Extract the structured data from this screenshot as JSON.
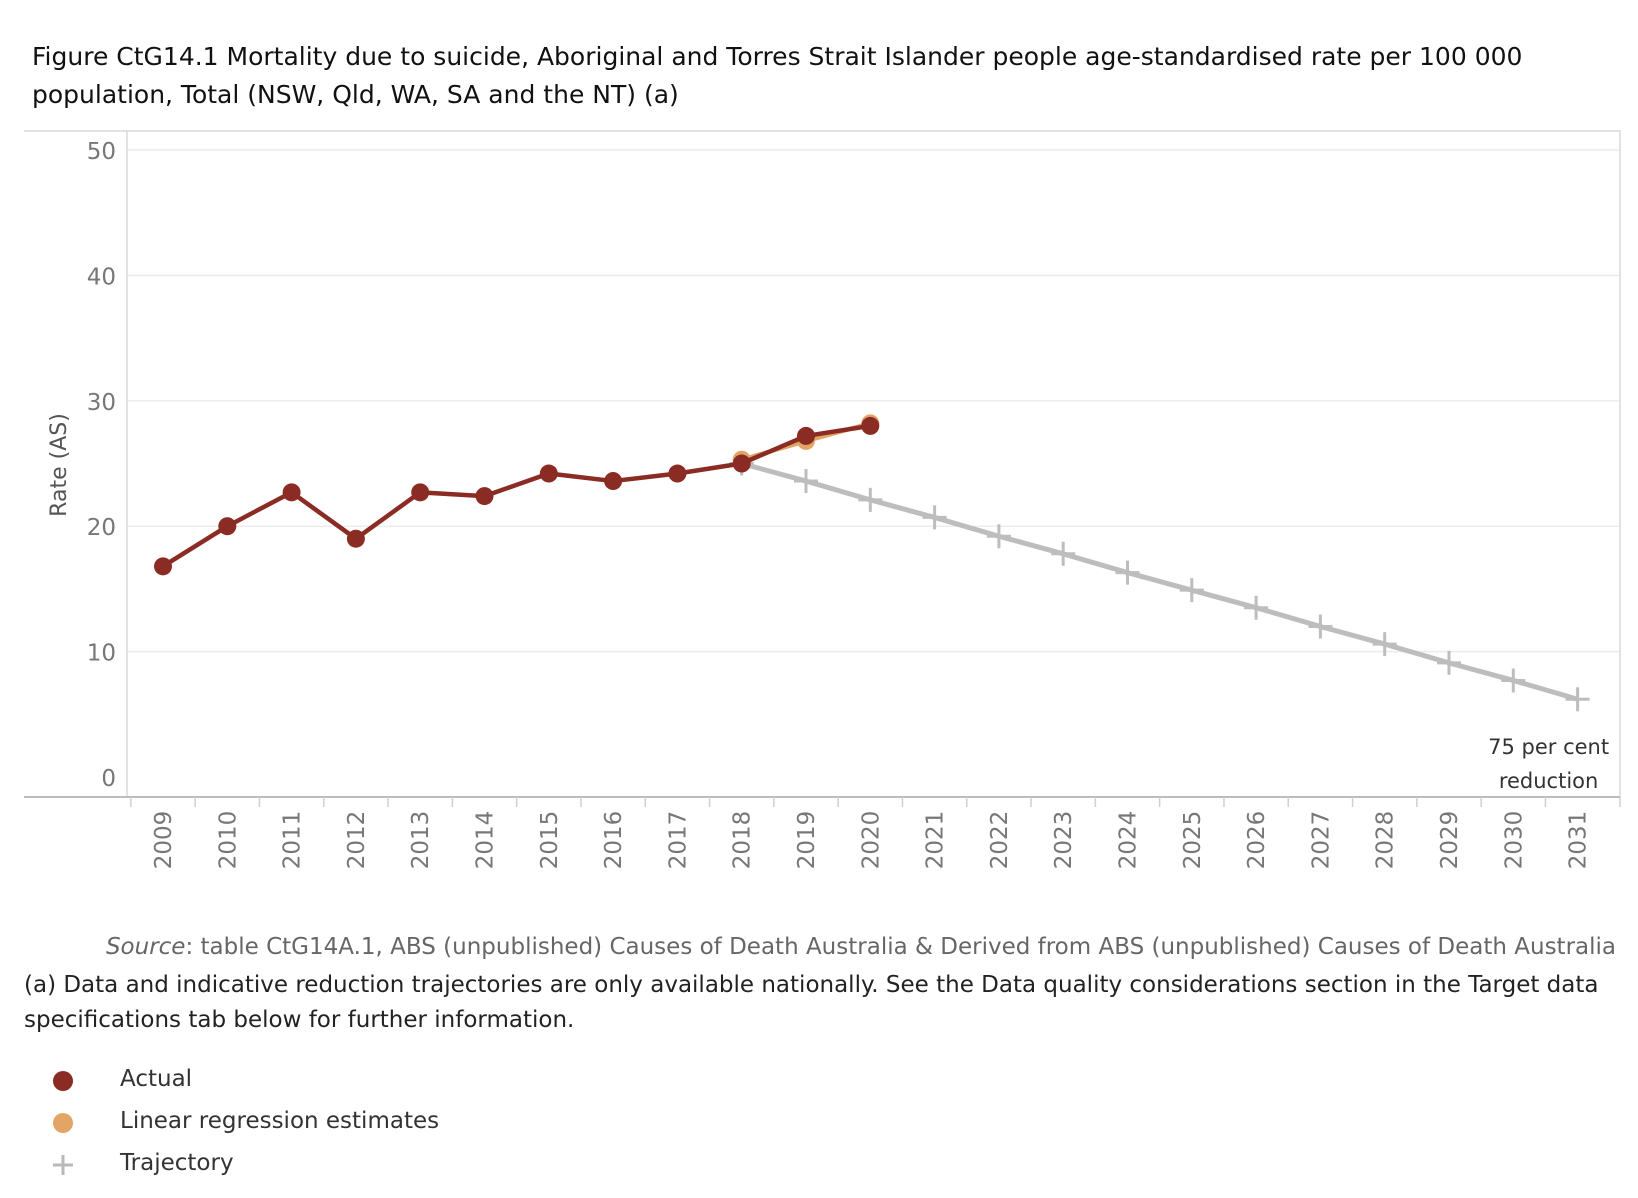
{
  "title": "Figure CtG14.1 Mortality due to suicide, Aboriginal and Torres Strait Islander people age-standardised rate per 100 000 population, Total (NSW, Qld, WA, SA and the NT) (a)",
  "source_label": "Source",
  "source_text": ": table CtG14A.1, ABS (unpublished) Causes of Death Australia & Derived from ABS (unpublished) Causes of Death Australia",
  "footnote": "(a) Data and indicative reduction trajectories are only available nationally. See the Data quality considerations section in the Target data specifications tab below for further information.",
  "legend": [
    {
      "label": "Actual",
      "marker": "circle",
      "color": "#8b2c24"
    },
    {
      "label": "Linear regression estimates",
      "marker": "circle",
      "color": "#e2a566"
    },
    {
      "label": "Trajectory",
      "marker": "plus",
      "color": "#b8b8b8"
    }
  ],
  "chart_data": {
    "type": "line",
    "ylabel": "Rate (AS)",
    "xlabel": "",
    "ylim": [
      0,
      50
    ],
    "yticks": [
      0,
      10,
      20,
      30,
      40,
      50
    ],
    "categories": [
      "2009",
      "2010",
      "2011",
      "2012",
      "2013",
      "2014",
      "2015",
      "2016",
      "2017",
      "2018",
      "2019",
      "2020",
      "2021",
      "2022",
      "2023",
      "2024",
      "2025",
      "2026",
      "2027",
      "2028",
      "2029",
      "2030",
      "2031"
    ],
    "grid": true,
    "annotation": {
      "text_line1": "75 per cent",
      "text_line2": "reduction",
      "x": "2031"
    },
    "series": [
      {
        "name": "Trajectory",
        "color": "#bdbdbd",
        "marker": "plus",
        "x": [
          "2018",
          "2019",
          "2020",
          "2021",
          "2022",
          "2023",
          "2024",
          "2025",
          "2026",
          "2027",
          "2028",
          "2029",
          "2030",
          "2031"
        ],
        "values": [
          25.0,
          23.6,
          22.1,
          20.7,
          19.2,
          17.8,
          16.3,
          14.9,
          13.5,
          12.0,
          10.6,
          9.1,
          7.7,
          6.2
        ]
      },
      {
        "name": "Linear regression estimates",
        "color": "#e2a566",
        "marker": "circle",
        "x": [
          "2018",
          "2019",
          "2020"
        ],
        "values": [
          25.3,
          26.8,
          28.2
        ]
      },
      {
        "name": "Actual",
        "color": "#8b2c24",
        "marker": "circle",
        "x": [
          "2009",
          "2010",
          "2011",
          "2012",
          "2013",
          "2014",
          "2015",
          "2016",
          "2017",
          "2018",
          "2019",
          "2020"
        ],
        "values": [
          16.8,
          20.0,
          22.7,
          19.0,
          22.7,
          22.4,
          24.2,
          23.6,
          24.2,
          25.0,
          27.2,
          28.0
        ]
      }
    ]
  }
}
